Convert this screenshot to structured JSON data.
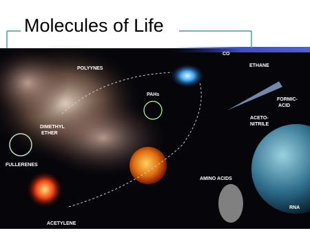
{
  "slide": {
    "title": "Molecules of Life",
    "image_labels": [
      "CO",
      "POLYYNES",
      "ETHANE",
      "PAHs",
      "FORMIC-",
      "ACID",
      "DIMETHYL",
      "ETHER",
      "ACETO-",
      "NITRILE",
      "FULLERENES",
      "AMINO ACIDS",
      "RNA",
      "ACETYLENE"
    ]
  }
}
